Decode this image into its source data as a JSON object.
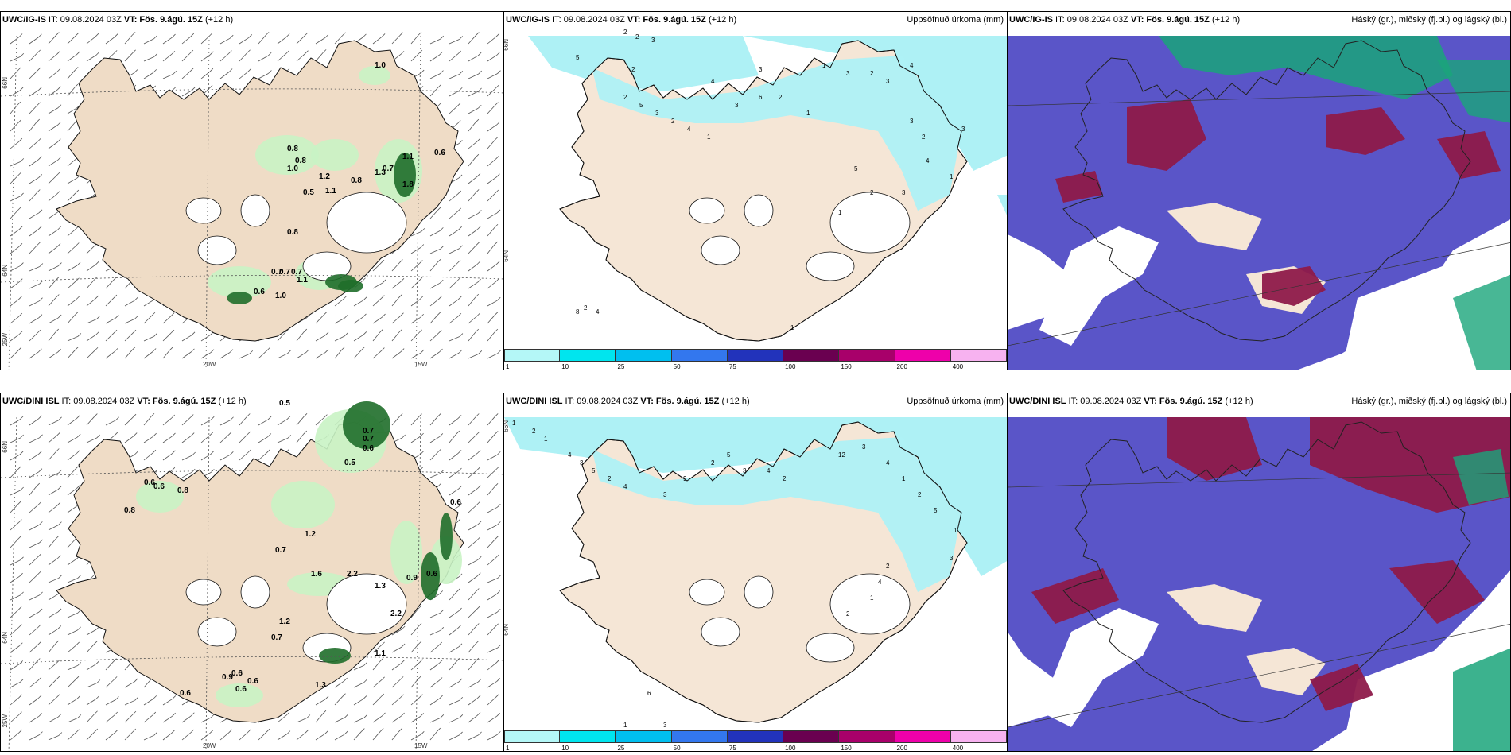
{
  "panels": {
    "p1": {
      "model": "UWC/IG-IS",
      "run": " IT: 09.08.2024 03Z ",
      "vt_label": "VT: Fös. 9.ágú. 15Z",
      "lead": " (+12 h)",
      "right": ""
    },
    "p2": {
      "model": "UWC/IG-IS",
      "run": " IT: 09.08.2024 03Z ",
      "vt_label": "VT: Fös. 9.ágú. 15Z",
      "lead": " (+12 h)",
      "right": "Uppsöfnuð úrkoma (mm)"
    },
    "p3": {
      "model": "UWC/IG-IS",
      "run": " IT: 09.08.2024 03Z ",
      "vt_label": "VT: Fös. 9.ágú. 15Z",
      "lead": " (+12 h)",
      "right": "Háský (gr.), miðský (fj.bl.) og lágský (bl.)"
    },
    "p4": {
      "model": "UWC/DINI ISL",
      "run": " IT: 09.08.2024 03Z ",
      "vt_label": "VT: Fös. 9.ágú. 15Z",
      "lead": " (+12 h)",
      "right": ""
    },
    "p5": {
      "model": "UWC/DINI ISL",
      "run": " IT: 09.08.2024 03Z ",
      "vt_label": "VT: Fös. 9.ágú. 15Z",
      "lead": " (+12 h)",
      "right": "Uppsöfnuð úrkoma (mm)"
    },
    "p6": {
      "model": "UWC/DINI ISL",
      "run": " IT: 09.08.2024 03Z ",
      "vt_label": "VT: Fös. 9.ágú. 15Z",
      "lead": " (+12 h)",
      "right": "Háský (gr.), miðský (fj.bl.) og lágský (bl.)"
    }
  },
  "axes": {
    "lon_20w": "20W",
    "lon_15w": "15W",
    "lat_66n": "66N",
    "lat_64n": "64N",
    "lat_25w": "25W"
  },
  "colorbar": {
    "ticks": [
      "1",
      "10",
      "25",
      "50",
      "75",
      "100",
      "150",
      "200",
      "400"
    ],
    "colors": [
      "#b4f7f7",
      "#00e5ee",
      "#00bfef",
      "#3377ee",
      "#2233bb",
      "#6a0050",
      "#a8006a",
      "#ee00aa",
      "#f7b2f0"
    ]
  },
  "precip_labels_top": [
    "1.0",
    "0.8",
    "0.8",
    "1.0",
    "1.2",
    "0.8",
    "1.3",
    "0.7",
    "1.1",
    "0.6",
    "1.8",
    "0.5",
    "1.1",
    "0.8",
    "0.7",
    "0.7",
    "0.7",
    "1.1",
    "0.6",
    "1.0"
  ],
  "precip_labels_bottom": [
    "0.5",
    "0.7",
    "0.7",
    "0.6",
    "0.5",
    "0.6",
    "0.6",
    "0.8",
    "0.8",
    "0.6",
    "1.2",
    "0.7",
    "1.6",
    "2.2",
    "1.3",
    "0.9",
    "0.6",
    "1.2",
    "2.2",
    "0.7",
    "1.1",
    "0.6",
    "0.9",
    "0.6",
    "0.6",
    "1.3",
    "0.6"
  ],
  "accum_labels_top": [
    "2",
    "2",
    "3",
    "5",
    "2",
    "4",
    "3",
    "1",
    "3",
    "2",
    "3",
    "4",
    "2",
    "5",
    "3",
    "2",
    "1",
    "4",
    "3",
    "6",
    "2",
    "1",
    "3",
    "2",
    "4",
    "1",
    "3",
    "5",
    "2",
    "3",
    "1",
    "8",
    "2",
    "4",
    "1"
  ],
  "accum_labels_bottom": [
    "1",
    "2",
    "1",
    "4",
    "3",
    "5",
    "2",
    "4",
    "3",
    "9",
    "2",
    "5",
    "3",
    "4",
    "2",
    "12",
    "3",
    "4",
    "1",
    "2",
    "5",
    "1",
    "3",
    "2",
    "4",
    "1",
    "2",
    "6",
    "1",
    "3"
  ],
  "colors": {
    "land": "#f5e6d6",
    "land_precip": "#efdcc6",
    "cyan": "#aef1f5",
    "cloud_blue": "#5a55c8",
    "cloud_maroon": "#8e1a4a",
    "cloud_green": "#1aa57a",
    "light_green": "#c9f3c4"
  }
}
